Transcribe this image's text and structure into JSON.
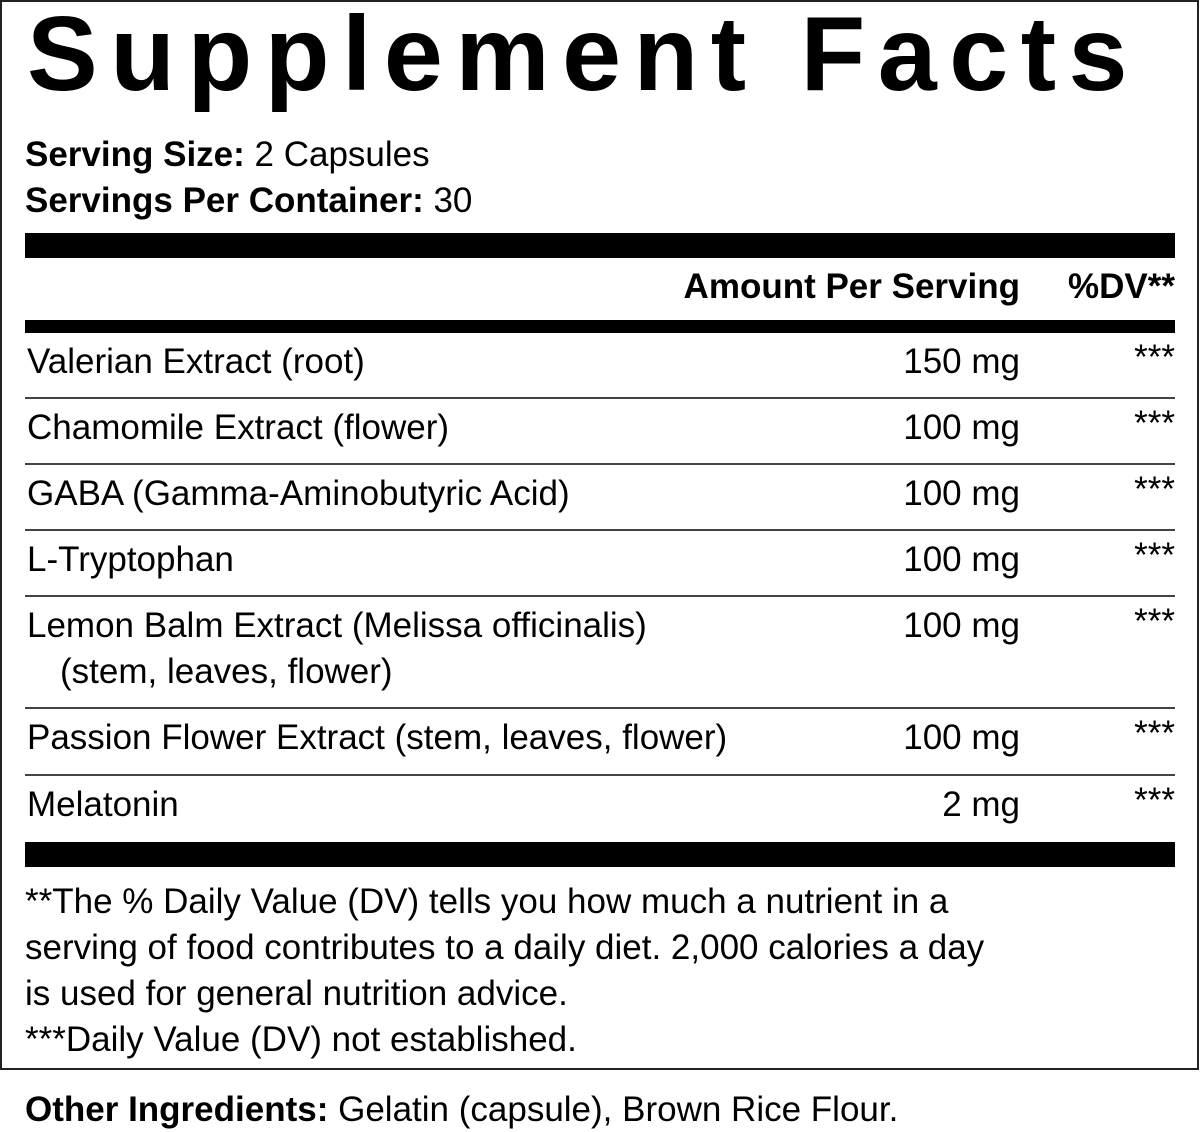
{
  "title": "Supplement Facts",
  "serving_size": {
    "label": "Serving Size:",
    "value": "2 Capsules"
  },
  "servings_per_container": {
    "label": "Servings Per Container:",
    "value": "30"
  },
  "header": {
    "amount": "Amount Per Serving",
    "dv": "%DV**"
  },
  "rows": [
    {
      "name": "Valerian Extract (root)",
      "amount": "150 mg",
      "dv": "***"
    },
    {
      "name": "Chamomile Extract (flower)",
      "amount": "100 mg",
      "dv": "***"
    },
    {
      "name": "GABA (Gamma-Aminobutyric Acid)",
      "amount": "100 mg",
      "dv": "***"
    },
    {
      "name": "L-Tryptophan",
      "amount": "100 mg",
      "dv": "***"
    },
    {
      "name": "Lemon Balm Extract (Melissa officinalis)",
      "name2": "(stem, leaves, flower)",
      "amount": "100 mg",
      "dv": "***"
    },
    {
      "name": "Passion Flower Extract (stem, leaves, flower)",
      "amount": "100 mg",
      "dv": "***"
    },
    {
      "name": "Melatonin",
      "amount": "2 mg",
      "dv": "***"
    }
  ],
  "footnotes": [
    "**The % Daily Value (DV) tells you how much a nutrient in a",
    "serving of food contributes to a daily diet. 2,000 calories a day",
    "is used for general nutrition advice.",
    "***Daily Value (DV) not established."
  ],
  "other_ingredients": {
    "label": "Other Ingredients:",
    "value": "Gelatin (capsule), Brown Rice Flour."
  }
}
